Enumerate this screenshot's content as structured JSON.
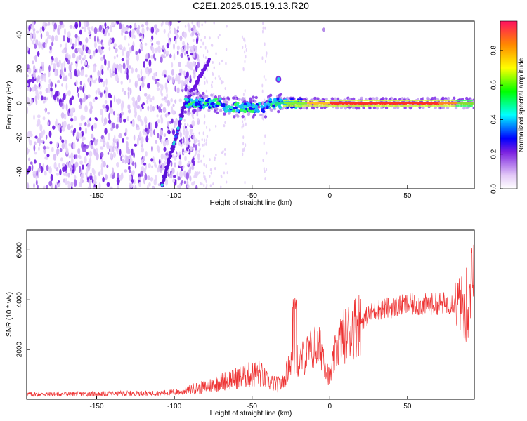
{
  "figure": {
    "title": "C2E1.2025.015.19.13.R20"
  },
  "chart_data": [
    {
      "type": "heatmap",
      "id": "spectrogram",
      "title": "C2E1.2025.015.19.13.R20",
      "xlabel": "Height of straight line (km)",
      "ylabel": "Frequency (Hz)",
      "xlim": [
        -195,
        93
      ],
      "ylim": [
        -50,
        48
      ],
      "xticks": [
        -150,
        -100,
        -50,
        0,
        50
      ],
      "yticks": [
        -40,
        -20,
        0,
        20,
        40
      ],
      "grid": false,
      "colormap": "rainbow",
      "colorbar": {
        "label": "Normalized spectral amplitude",
        "range": [
          0.0,
          0.97
        ],
        "ticks": [
          0.0,
          0.2,
          0.4,
          0.6,
          0.8
        ]
      },
      "features": {
        "noise_region_x": [
          -195,
          -90
        ],
        "descending_trace": {
          "from": [
            -108,
            -48
          ],
          "to": [
            -93,
            0
          ]
        },
        "ascending_trace": {
          "from": [
            -93,
            0
          ],
          "to": [
            -77,
            26
          ]
        },
        "main_line_frequency": 0,
        "small_blob": [
          -33,
          14
        ],
        "dot": [
          -4,
          43
        ]
      }
    },
    {
      "type": "line",
      "id": "snr",
      "xlabel": "Height of straight line (km)",
      "ylabel": "SNR (10 * v/v)",
      "xlim": [
        -195,
        93
      ],
      "ylim": [
        0,
        6800
      ],
      "xticks": [
        -150,
        -100,
        -50,
        0,
        50
      ],
      "yticks": [
        2000,
        4000,
        6000
      ],
      "grid": false,
      "color": "#ee3333",
      "series": [
        {
          "x": [
            -195,
            -150,
            -110,
            -95,
            -90,
            -80,
            -70,
            -60,
            -50,
            -45,
            -40,
            -35,
            -32,
            -30,
            -25,
            -22,
            -20,
            -15,
            -10,
            -5,
            -3,
            0,
            2,
            5,
            10,
            15,
            20,
            25,
            30,
            40,
            50,
            60,
            70,
            80,
            85,
            88,
            90,
            93
          ],
          "values": [
            200,
            220,
            250,
            300,
            400,
            500,
            700,
            850,
            1000,
            1050,
            700,
            600,
            600,
            700,
            1500,
            1600,
            1500,
            1800,
            2100,
            2000,
            1500,
            800,
            1400,
            2200,
            2600,
            2900,
            3100,
            3400,
            3600,
            3700,
            3800,
            3800,
            3850,
            3900,
            3800,
            3000,
            3700,
            3000
          ]
        }
      ]
    }
  ]
}
